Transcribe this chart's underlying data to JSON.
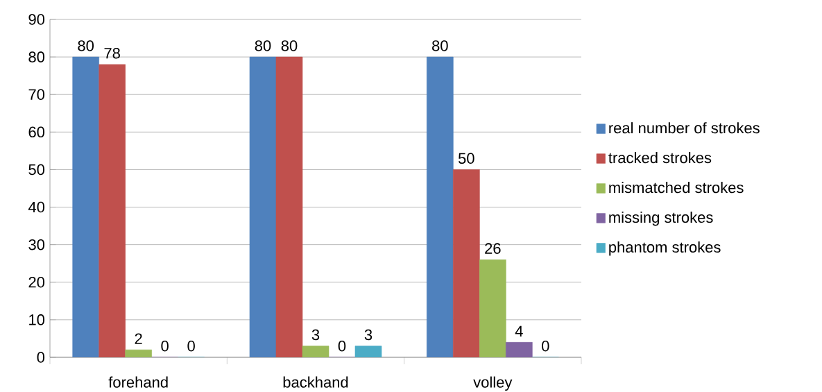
{
  "chart_data": {
    "type": "bar",
    "categories": [
      "forehand",
      "backhand",
      "volley"
    ],
    "series": [
      {
        "name": "real number of strokes",
        "color": "#4f81bd",
        "values": [
          80,
          80,
          80
        ]
      },
      {
        "name": "tracked strokes",
        "color": "#c0504d",
        "values": [
          78,
          80,
          50
        ]
      },
      {
        "name": "mismatched strokes",
        "color": "#9bbb59",
        "values": [
          2,
          3,
          26
        ]
      },
      {
        "name": "missing strokes",
        "color": "#8064a2",
        "values": [
          0,
          0,
          4
        ]
      },
      {
        "name": "phantom strokes",
        "color": "#4bacc6",
        "values": [
          0,
          3,
          0
        ]
      }
    ],
    "ylim": [
      0,
      90
    ],
    "yticks": [
      0,
      10,
      20,
      30,
      40,
      50,
      60,
      70,
      80,
      90
    ],
    "grid": "y",
    "legend": "right",
    "data_labels": true
  }
}
